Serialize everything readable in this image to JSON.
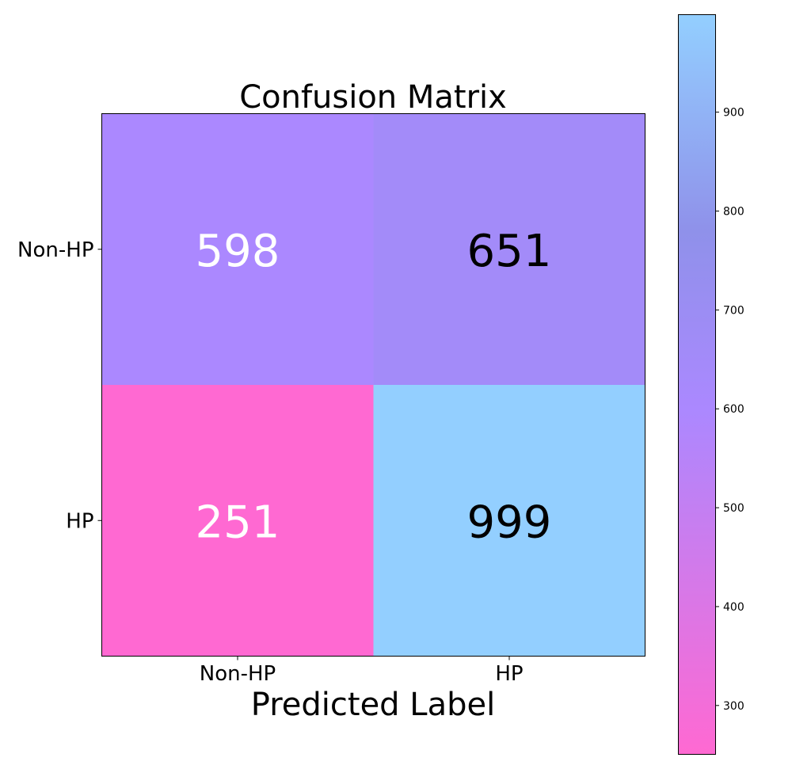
{
  "chart_data": {
    "type": "heatmap",
    "title": "Confusion Matrix",
    "xlabel": "Predicted Label",
    "ylabel": "",
    "x_categories": [
      "Non-HP",
      "HP"
    ],
    "y_categories": [
      "Non-HP",
      "HP"
    ],
    "values": [
      [
        598,
        651
      ],
      [
        251,
        999
      ]
    ],
    "value_labels": [
      [
        "598",
        "651"
      ],
      [
        "251",
        "999"
      ]
    ],
    "colorbar": {
      "range": [
        251,
        999
      ],
      "ticks": [
        300,
        400,
        500,
        600,
        700,
        800,
        900
      ],
      "tick_labels": [
        "300",
        "400",
        "500",
        "600",
        "700",
        "800",
        "900"
      ],
      "colors": [
        "#ff69d2",
        "#ab88ff",
        "#8f91ea",
        "#93cfff"
      ],
      "color_stops": [
        251,
        600,
        780,
        999
      ]
    }
  }
}
